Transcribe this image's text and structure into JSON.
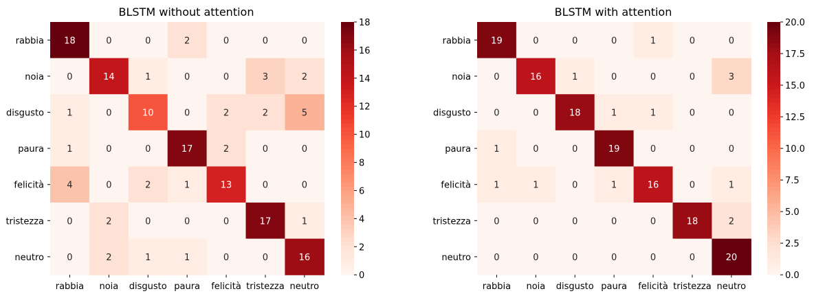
{
  "chart_data": [
    {
      "type": "heatmap",
      "title": "BLSTM without attention",
      "row_labels": [
        "rabbia",
        "noia",
        "disgusto",
        "paura",
        "felicità",
        "tristezza",
        "neutro"
      ],
      "col_labels": [
        "rabbia",
        "noia",
        "disgusto",
        "paura",
        "felicità",
        "tristezza",
        "neutro"
      ],
      "values": [
        [
          18,
          0,
          0,
          2,
          0,
          0,
          0
        ],
        [
          0,
          14,
          1,
          0,
          0,
          3,
          2
        ],
        [
          1,
          0,
          10,
          0,
          2,
          2,
          5
        ],
        [
          1,
          0,
          0,
          17,
          2,
          0,
          0
        ],
        [
          4,
          0,
          2,
          1,
          13,
          0,
          0
        ],
        [
          0,
          2,
          0,
          0,
          0,
          17,
          1
        ],
        [
          0,
          2,
          1,
          1,
          0,
          0,
          16
        ]
      ],
      "colorbar": {
        "min": 0,
        "max": 18,
        "ticks": [
          "0",
          "2",
          "4",
          "6",
          "8",
          "10",
          "12",
          "14",
          "16",
          "18"
        ],
        "colormap": "Reds"
      }
    },
    {
      "type": "heatmap",
      "title": "BLSTM with attention",
      "row_labels": [
        "rabbia",
        "noia",
        "disgusto",
        "paura",
        "felicità",
        "tristezza",
        "neutro"
      ],
      "col_labels": [
        "rabbia",
        "noia",
        "disgusto",
        "paura",
        "felicità",
        "tristezza",
        "neutro"
      ],
      "values": [
        [
          19,
          0,
          0,
          0,
          1,
          0,
          0
        ],
        [
          0,
          16,
          1,
          0,
          0,
          0,
          3
        ],
        [
          0,
          0,
          18,
          1,
          1,
          0,
          0
        ],
        [
          1,
          0,
          0,
          19,
          0,
          0,
          0
        ],
        [
          1,
          1,
          0,
          1,
          16,
          0,
          1
        ],
        [
          0,
          0,
          0,
          0,
          0,
          18,
          2
        ],
        [
          0,
          0,
          0,
          0,
          0,
          0,
          20
        ]
      ],
      "colorbar": {
        "min": 0,
        "max": 20,
        "ticks": [
          "0.0",
          "2.5",
          "5.0",
          "7.5",
          "10.0",
          "12.5",
          "15.0",
          "17.5",
          "20.0"
        ],
        "colormap": "Reds"
      }
    }
  ]
}
